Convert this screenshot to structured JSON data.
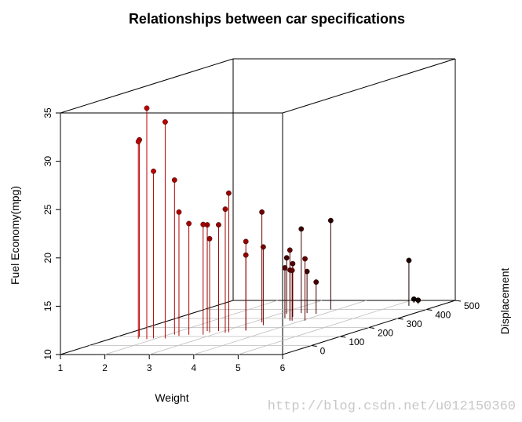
{
  "chart_data": {
    "type": "scatter",
    "title": "Relationships between car specifications",
    "xlabel": "Weight",
    "ylabel": "Displacement",
    "zlabel": "Fuel Economy(mpg)",
    "xlim": [
      1,
      6
    ],
    "ylim": [
      -100,
      500
    ],
    "zlim": [
      10,
      35
    ],
    "x_ticks": [
      "1",
      "2",
      "3",
      "4",
      "5",
      "6"
    ],
    "y_ticks": [
      "0",
      "100",
      "200",
      "300",
      "400",
      "500"
    ],
    "z_ticks": [
      "10",
      "15",
      "20",
      "25",
      "30",
      "35"
    ],
    "projection_type": "3d scatter with vertical drop lines",
    "point_color_low": "#ff0000",
    "point_color_high": "#000000",
    "points": [
      {
        "x": 2.62,
        "y": 160,
        "z": 21.0
      },
      {
        "x": 2.875,
        "y": 160,
        "z": 21.0
      },
      {
        "x": 2.32,
        "y": 108,
        "z": 22.8
      },
      {
        "x": 3.215,
        "y": 258,
        "z": 21.4
      },
      {
        "x": 3.44,
        "y": 360,
        "z": 18.7
      },
      {
        "x": 3.46,
        "y": 225,
        "z": 18.1
      },
      {
        "x": 3.57,
        "y": 360,
        "z": 14.3
      },
      {
        "x": 3.19,
        "y": 146.7,
        "z": 24.4
      },
      {
        "x": 3.15,
        "y": 140.8,
        "z": 22.8
      },
      {
        "x": 3.44,
        "y": 167.6,
        "z": 19.2
      },
      {
        "x": 3.44,
        "y": 167.6,
        "z": 17.8
      },
      {
        "x": 4.07,
        "y": 275.8,
        "z": 16.4
      },
      {
        "x": 3.73,
        "y": 275.8,
        "z": 17.3
      },
      {
        "x": 3.78,
        "y": 275.8,
        "z": 15.2
      },
      {
        "x": 5.25,
        "y": 472,
        "z": 10.4
      },
      {
        "x": 5.424,
        "y": 460,
        "z": 10.4
      },
      {
        "x": 5.345,
        "y": 440,
        "z": 14.7
      },
      {
        "x": 2.2,
        "y": 78.7,
        "z": 32.4
      },
      {
        "x": 1.615,
        "y": 75.7,
        "z": 30.4
      },
      {
        "x": 1.835,
        "y": 71.1,
        "z": 33.9
      },
      {
        "x": 2.465,
        "y": 120.1,
        "z": 21.5
      },
      {
        "x": 3.52,
        "y": 318,
        "z": 15.5
      },
      {
        "x": 3.435,
        "y": 304,
        "z": 15.2
      },
      {
        "x": 3.84,
        "y": 350,
        "z": 13.3
      },
      {
        "x": 3.845,
        "y": 400,
        "z": 19.2
      },
      {
        "x": 1.935,
        "y": 79,
        "z": 27.3
      },
      {
        "x": 2.14,
        "y": 120.3,
        "z": 26.0
      },
      {
        "x": 1.513,
        "y": 95.1,
        "z": 30.4
      },
      {
        "x": 3.17,
        "y": 351,
        "z": 15.8
      },
      {
        "x": 2.77,
        "y": 145,
        "z": 19.7
      },
      {
        "x": 3.57,
        "y": 301,
        "z": 15.0
      },
      {
        "x": 2.78,
        "y": 121,
        "z": 21.4
      }
    ]
  },
  "watermark": "http://blog.csdn.net/u012150360"
}
